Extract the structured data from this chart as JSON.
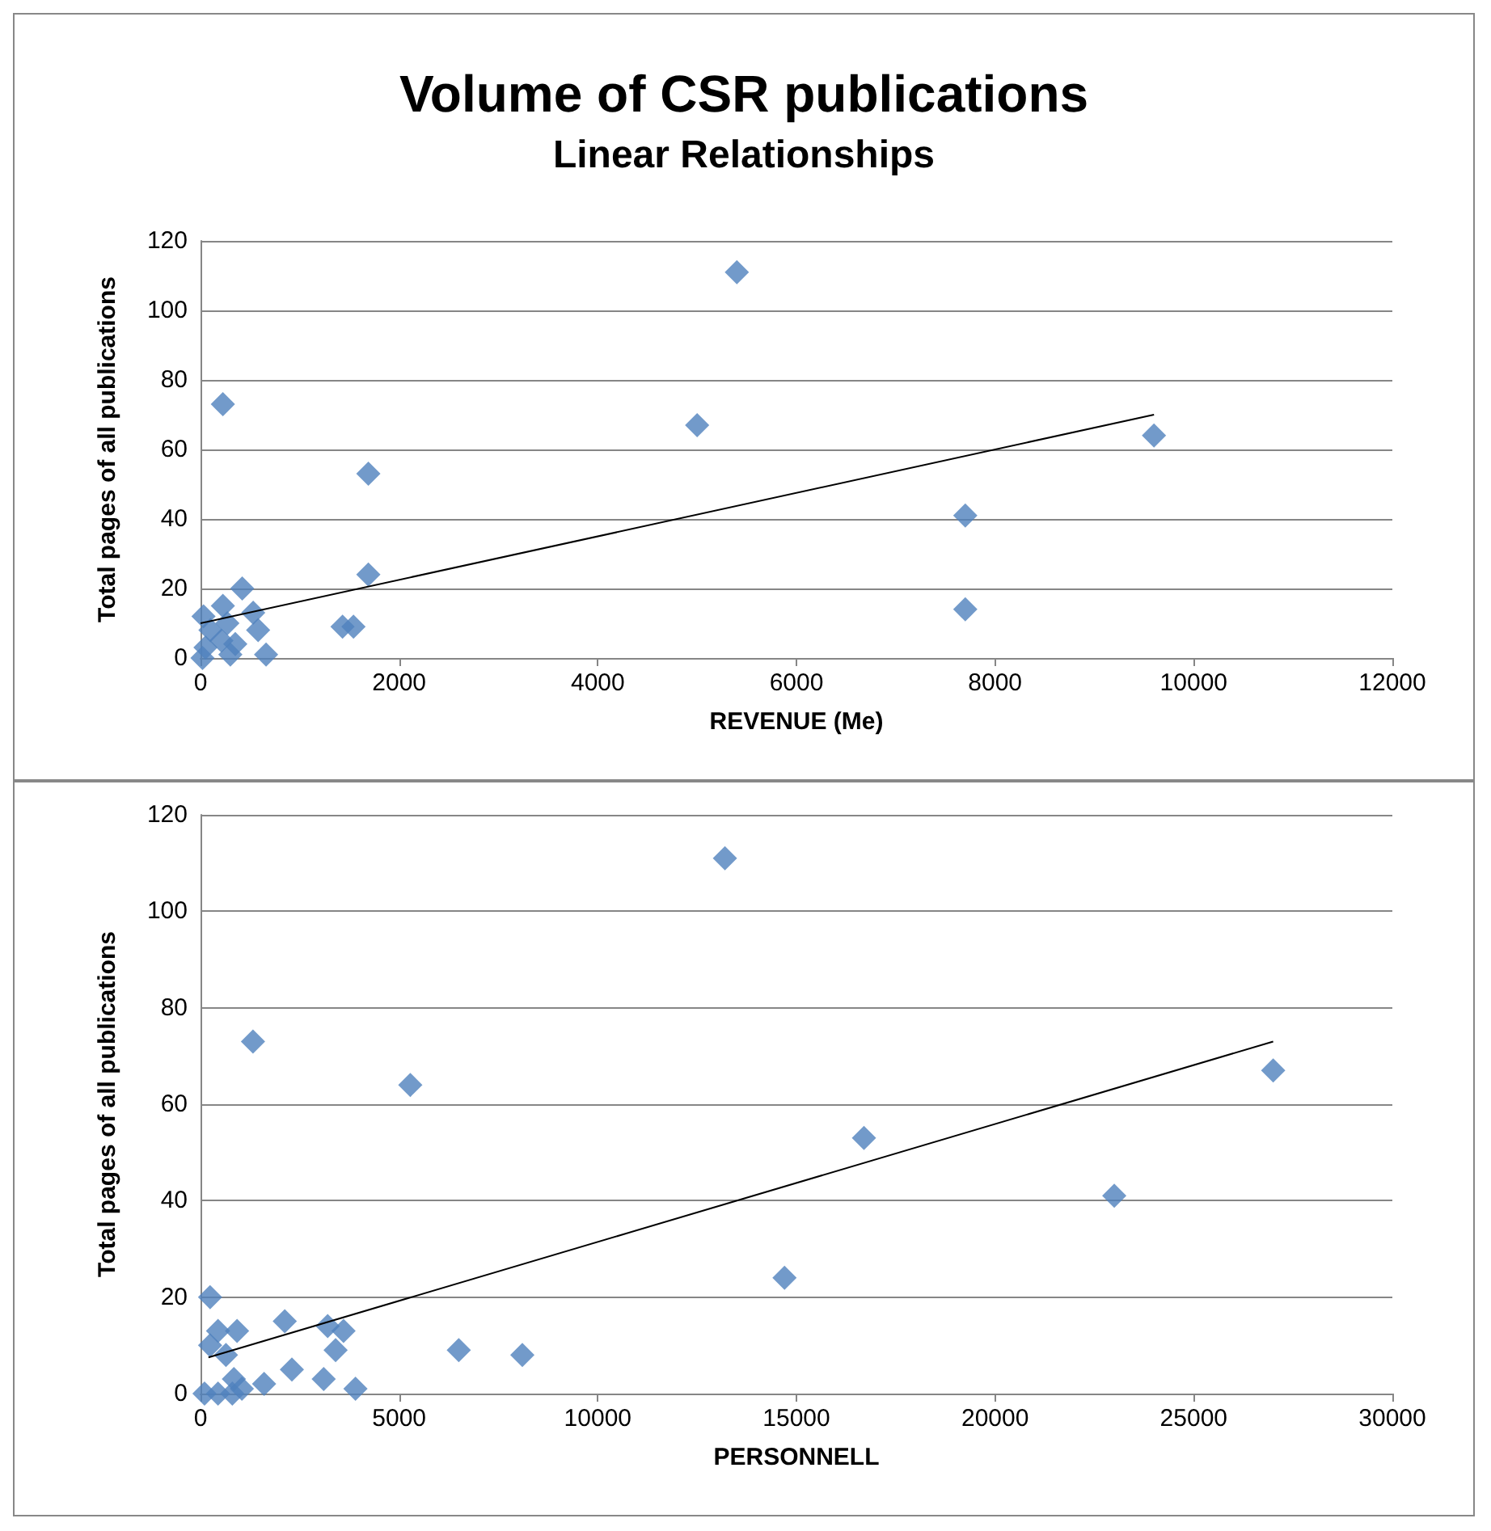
{
  "chart_data": [
    {
      "type": "scatter",
      "title": "Volume of CSR publications",
      "subtitle": "Linear Relationships",
      "xlabel": "REVENUE (Me)",
      "ylabel": "Total pages of all publications",
      "marker": "diamond",
      "grid": "y",
      "xlim": [
        0,
        12000
      ],
      "xticks": [
        0,
        2000,
        4000,
        6000,
        8000,
        10000,
        12000
      ],
      "ylim": [
        0,
        120
      ],
      "yticks": [
        0,
        20,
        40,
        60,
        80,
        100,
        120
      ],
      "series": [
        {
          "color": "#4f81bd",
          "x": [
            225,
            1690,
            1690,
            420,
            1430,
            1540,
            5000,
            5400,
            7700,
            7700,
            9600,
            30,
            225,
            530,
            580,
            50,
            20,
            300,
            660,
            210,
            270,
            350,
            100
          ],
          "values": [
            73,
            53,
            24,
            20,
            9,
            9,
            67,
            111,
            41,
            14,
            64,
            12,
            15,
            13,
            8,
            3,
            0,
            1,
            1,
            5,
            10,
            4,
            8
          ]
        },
        {
          "type": "line",
          "marker": "none",
          "color": "#000000",
          "x": [
            0,
            9600
          ],
          "values": [
            10,
            70
          ]
        }
      ]
    },
    {
      "type": "scatter",
      "xlabel": "PERSONNELL",
      "ylabel": "Total pages of all publications",
      "marker": "diamond",
      "grid": "y",
      "xlim": [
        0,
        30000
      ],
      "xticks": [
        0,
        5000,
        10000,
        15000,
        20000,
        25000,
        30000
      ],
      "ylim": [
        0,
        120
      ],
      "yticks": [
        0,
        20,
        40,
        60,
        80,
        100,
        120
      ],
      "series": [
        {
          "color": "#4f81bd",
          "x": [
            13200,
            1320,
            5280,
            16700,
            27000,
            23000,
            14700,
            6500,
            8100,
            3900,
            240,
            440,
            920,
            240,
            640,
            2120,
            3200,
            3600,
            3400,
            2300,
            1600,
            3100,
            100,
            440,
            800,
            840,
            1040
          ],
          "values": [
            111,
            73,
            64,
            53,
            67,
            41,
            24,
            9,
            8,
            1,
            20,
            13,
            13,
            10,
            8,
            15,
            14,
            13,
            9,
            5,
            2,
            3,
            0,
            0,
            0,
            3,
            1
          ]
        },
        {
          "type": "line",
          "marker": "none",
          "color": "#000000",
          "x": [
            200,
            27000
          ],
          "values": [
            7.5,
            73
          ]
        }
      ]
    }
  ]
}
